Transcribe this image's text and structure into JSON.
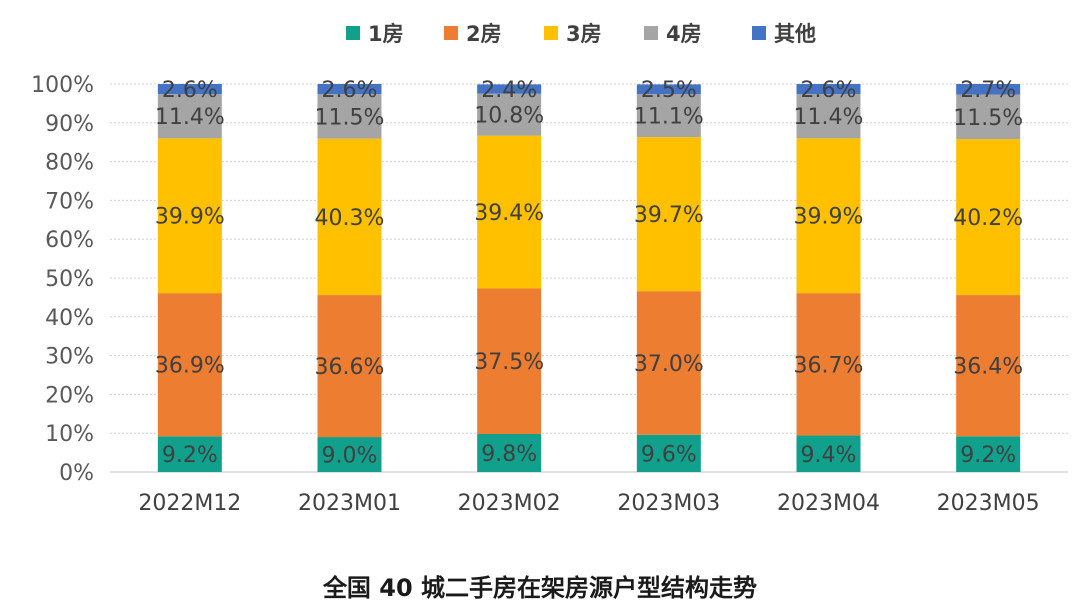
{
  "chart_data": {
    "type": "bar",
    "stacked": true,
    "title": "全国 40 城二手房在架房源户型结构走势",
    "categories": [
      "2022M12",
      "2023M01",
      "2023M02",
      "2023M03",
      "2023M04",
      "2023M05"
    ],
    "series": [
      {
        "name": "1房",
        "color": "#10a08c",
        "values": [
          9.2,
          9.0,
          9.8,
          9.6,
          9.4,
          9.2
        ],
        "labels": [
          "9.2%",
          "9.0%",
          "9.8%",
          "9.6%",
          "9.4%",
          "9.2%"
        ]
      },
      {
        "name": "2房",
        "color": "#ed7d31",
        "values": [
          36.9,
          36.6,
          37.5,
          37.0,
          36.7,
          36.4
        ],
        "labels": [
          "36.9%",
          "36.6%",
          "37.5%",
          "37.0%",
          "36.7%",
          "36.4%"
        ]
      },
      {
        "name": "3房",
        "color": "#ffc000",
        "values": [
          39.9,
          40.3,
          39.4,
          39.7,
          39.9,
          40.2
        ],
        "labels": [
          "39.9%",
          "40.3%",
          "39.4%",
          "39.7%",
          "39.9%",
          "40.2%"
        ]
      },
      {
        "name": "4房",
        "color": "#a5a5a5",
        "values": [
          11.4,
          11.5,
          10.8,
          11.1,
          11.4,
          11.5
        ],
        "labels": [
          "11.4%",
          "11.5%",
          "10.8%",
          "11.1%",
          "11.4%",
          "11.5%"
        ]
      },
      {
        "name": "其他",
        "color": "#4472c4",
        "values": [
          2.6,
          2.6,
          2.4,
          2.5,
          2.6,
          2.7
        ],
        "labels": [
          "2.6%",
          "2.6%",
          "2.4%",
          "2.5%",
          "2.6%",
          "2.7%"
        ]
      }
    ],
    "yticks": [
      "0%",
      "10%",
      "20%",
      "30%",
      "40%",
      "50%",
      "60%",
      "70%",
      "80%",
      "90%",
      "100%"
    ],
    "ylim": [
      0,
      100
    ],
    "grid": true,
    "legend": "top-center"
  }
}
